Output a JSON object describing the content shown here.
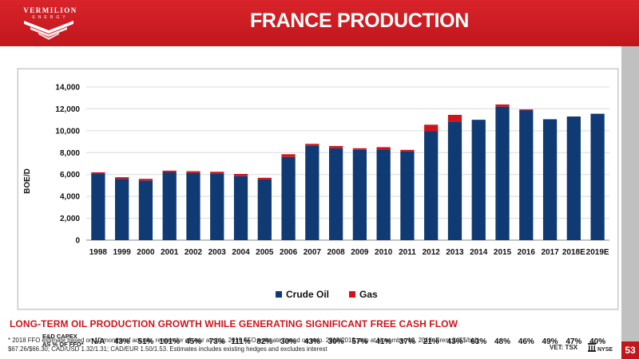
{
  "logo": {
    "name": "VERMILION",
    "sub": "ENERGY"
  },
  "title": "FRANCE PRODUCTION",
  "chart_data": {
    "type": "bar",
    "stacked": true,
    "categories": [
      "1998",
      "1999",
      "2000",
      "2001",
      "2002",
      "2003",
      "2004",
      "2005",
      "2006",
      "2007",
      "2008",
      "2009",
      "2010",
      "2011",
      "2012",
      "2013",
      "2014",
      "2015",
      "2016",
      "2017",
      "2018E",
      "2019E"
    ],
    "series": [
      {
        "name": "Crude Oil",
        "color": "#0f3a73",
        "values": [
          6050,
          5600,
          5450,
          6200,
          6150,
          6100,
          5850,
          5550,
          7600,
          8650,
          8400,
          8250,
          8300,
          8100,
          9950,
          10850,
          11000,
          12200,
          11850,
          11050,
          11300,
          11550
        ]
      },
      {
        "name": "Gas",
        "color": "#d0141c",
        "values": [
          150,
          150,
          150,
          150,
          150,
          150,
          200,
          150,
          250,
          150,
          200,
          150,
          200,
          150,
          600,
          600,
          0,
          200,
          100,
          0,
          0,
          0
        ]
      }
    ],
    "ylabel": "BOE/D",
    "ylim": [
      0,
      14000
    ],
    "yticks": [
      "0",
      "2,000",
      "4,000",
      "6,000",
      "8,000",
      "10,000",
      "12,000",
      "14,000"
    ],
    "grid": true,
    "legend_position": "bottom"
  },
  "capex": {
    "label_line1": "E&D CAPEX",
    "label_line2": "AS % OF FFO*",
    "values": [
      "N/A",
      "43%",
      "51%",
      "101%",
      "45%",
      "73%",
      "111%",
      "82%",
      "30%",
      "43%",
      "30%",
      "57%",
      "41%",
      "37%",
      "21%",
      "43%",
      "63%",
      "48%",
      "46%",
      "49%",
      "47%",
      "40%"
    ]
  },
  "tagline": "LONG-TERM OIL PRODUCTION GROWTH WHILE GENERATING SIGNIFICANT FREE CASH FLOW",
  "footnote_line1": "* 2018 FFO estimate based on 10 months of actuals, remainder of year at strip. 2019 FFO estimate based on strip. 2018/2019 strip at November 19, 2018: Brent (US$/bbl)",
  "footnote_line2": "$67.26/$66.30; CAD/USD 1.32/1.31; CAD/EUR 1.50/1.53. Estimates includes existing hedges and excludes interest",
  "exchanges": {
    "tsx": "VET: TSX",
    "nyse": "NYSE"
  },
  "page_number": "53"
}
